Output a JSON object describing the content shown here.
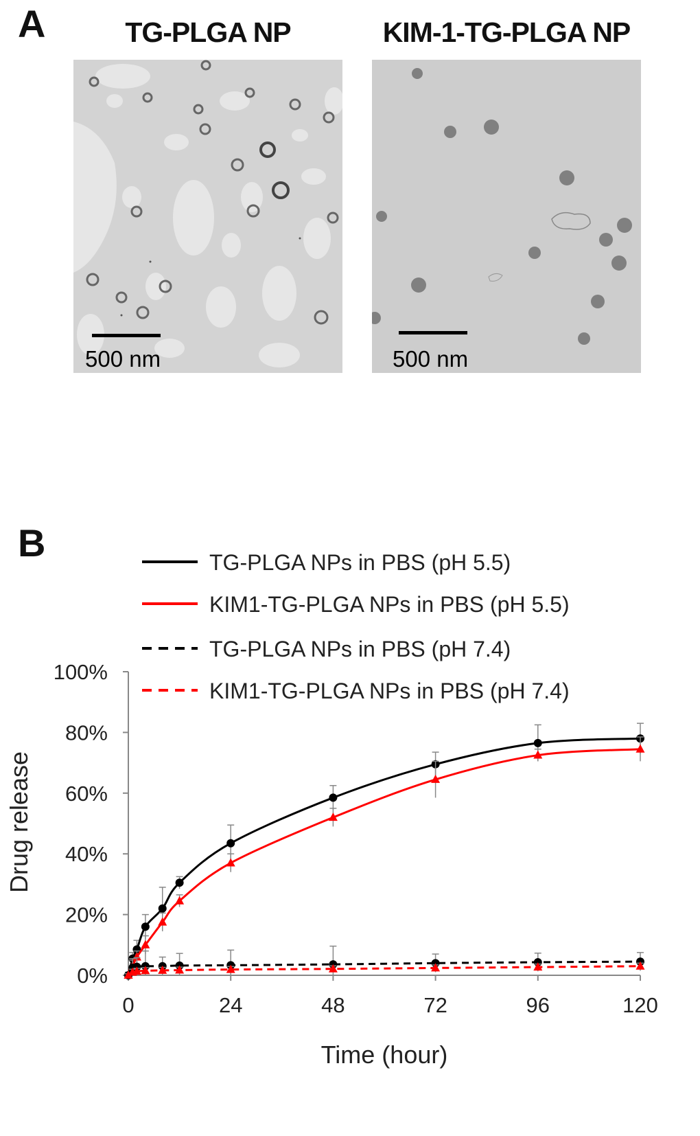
{
  "panel_a": {
    "letter": "A",
    "images": [
      {
        "title": "TG-PLGA NP",
        "scale_label": "500 nm"
      },
      {
        "title": "KIM-1-TG-PLGA NP",
        "scale_label": "500 nm"
      }
    ]
  },
  "panel_b": {
    "letter": "B"
  },
  "chart_data": {
    "type": "line",
    "xlabel": "Time (hour)",
    "ylabel": "Drug release",
    "xlim": [
      0,
      120
    ],
    "ylim": [
      0,
      100
    ],
    "x_ticks": [
      "0",
      "24",
      "48",
      "72",
      "96",
      "120"
    ],
    "y_ticks": [
      "0%",
      "20%",
      "40%",
      "60%",
      "80%",
      "100%"
    ],
    "legend_position": "top",
    "grid": false,
    "series": [
      {
        "name": "TG-PLGA NPs in PBS (pH 5.5)",
        "color": "#000000",
        "line_style": "solid",
        "marker": "circle",
        "x": [
          0,
          1,
          2,
          4,
          8,
          12,
          24,
          48,
          72,
          96,
          120
        ],
        "y": [
          0,
          5.5,
          8.5,
          16,
          22,
          30.5,
          43.5,
          58.5,
          69.5,
          76.5,
          78
        ],
        "error": [
          1,
          2,
          3,
          4,
          7,
          2,
          6,
          4,
          4,
          6,
          5
        ]
      },
      {
        "name": "KIM1-TG-PLGA NPs in PBS (pH 5.5)",
        "color": "#ff0000",
        "line_style": "solid",
        "marker": "triangle",
        "x": [
          0,
          1,
          2,
          4,
          8,
          12,
          24,
          48,
          72,
          96,
          120
        ],
        "y": [
          0,
          3,
          6,
          10,
          17.5,
          24.5,
          37,
          52,
          64.5,
          72.5,
          74.5
        ],
        "error": [
          1,
          2,
          2,
          3,
          3,
          2,
          3,
          3,
          6,
          2,
          4
        ]
      },
      {
        "name": "TG-PLGA NPs in PBS (pH 7.4)",
        "color": "#000000",
        "line_style": "dashed",
        "marker": "circle",
        "x": [
          0,
          1,
          2,
          4,
          8,
          12,
          24,
          48,
          72,
          96,
          120
        ],
        "y": [
          0,
          2.5,
          2.8,
          3,
          3,
          3.2,
          3.3,
          3.6,
          4,
          4.3,
          4.5
        ],
        "error": [
          1,
          3,
          3,
          5,
          3,
          4,
          5,
          6,
          3,
          3,
          3
        ]
      },
      {
        "name": "KIM1-TG-PLGA NPs in PBS (pH 7.4)",
        "color": "#ff0000",
        "line_style": "dashed",
        "marker": "triangle",
        "x": [
          0,
          1,
          2,
          4,
          8,
          12,
          24,
          48,
          72,
          96,
          120
        ],
        "y": [
          0,
          1,
          1.3,
          1.5,
          1.6,
          1.7,
          1.9,
          2.1,
          2.4,
          2.7,
          3
        ],
        "error": [
          0.5,
          1,
          1,
          1,
          1,
          1,
          1,
          1,
          1,
          1,
          1
        ]
      }
    ]
  }
}
